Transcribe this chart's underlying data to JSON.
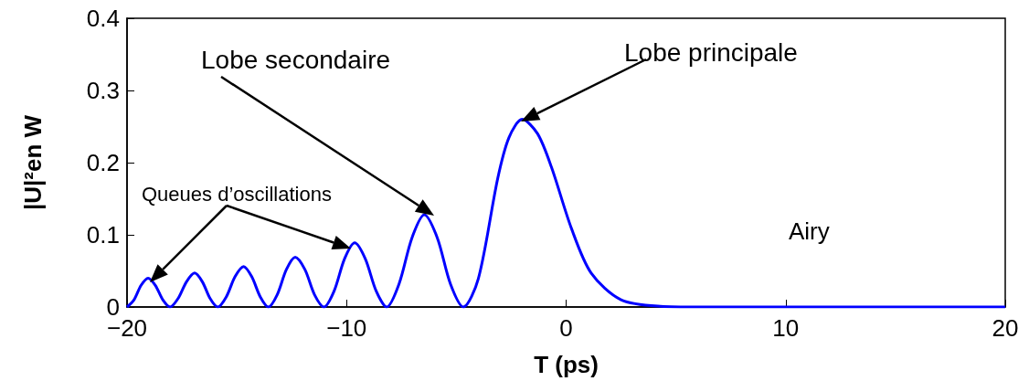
{
  "chart_data": {
    "type": "line",
    "xlabel": "T (ps)",
    "ylabel": "|U|²en W",
    "x": [
      -20,
      -19.68,
      -19.36,
      -19.04,
      -18.71,
      -18.37,
      -18.04,
      -17.67,
      -17.29,
      -16.92,
      -16.57,
      -16.22,
      -15.87,
      -15.48,
      -15.08,
      -14.69,
      -14.32,
      -13.93,
      -13.56,
      -13.16,
      -12.74,
      -12.34,
      -11.9,
      -11.46,
      -11.03,
      -10.57,
      -10.09,
      -9.63,
      -9.15,
      -8.65,
      -8.17,
      -7.61,
      -7.02,
      -6.46,
      -5.87,
      -5.27,
      -4.68,
      -4.0,
      -3.11,
      -2.6,
      -2.0,
      -1.3,
      -0.66,
      0.24,
      1.14,
      2.5,
      4.3,
      6,
      10,
      20
    ],
    "series": [
      {
        "color": "#0000ff",
        "values": [
          0,
          0.01,
          0.03,
          0.04,
          0.03,
          0.01,
          0,
          0.012,
          0.035,
          0.047,
          0.035,
          0.012,
          0,
          0.014,
          0.042,
          0.056,
          0.042,
          0.014,
          0,
          0.017,
          0.052,
          0.069,
          0.052,
          0.017,
          0,
          0.022,
          0.067,
          0.089,
          0.067,
          0.022,
          0,
          0.032,
          0.096,
          0.128,
          0.096,
          0.032,
          0,
          0.039,
          0.179,
          0.235,
          0.26,
          0.24,
          0.193,
          0.109,
          0.047,
          0.01,
          0.001,
          0,
          0,
          0
        ]
      }
    ],
    "xlim": [
      -20,
      20
    ],
    "xticks": [
      {
        "value": -20,
        "label": "−20"
      },
      {
        "value": -10,
        "label": "−10"
      },
      0,
      10,
      20
    ],
    "ylim": [
      0,
      0.4
    ],
    "yticks": [
      0,
      0.1,
      0.2,
      0.3,
      0.4
    ],
    "marker": "none",
    "line_style": "solid",
    "annotations": [
      "Queues d’oscillations",
      "Lobe secondaire",
      "Lobe principale",
      "Airy"
    ]
  }
}
